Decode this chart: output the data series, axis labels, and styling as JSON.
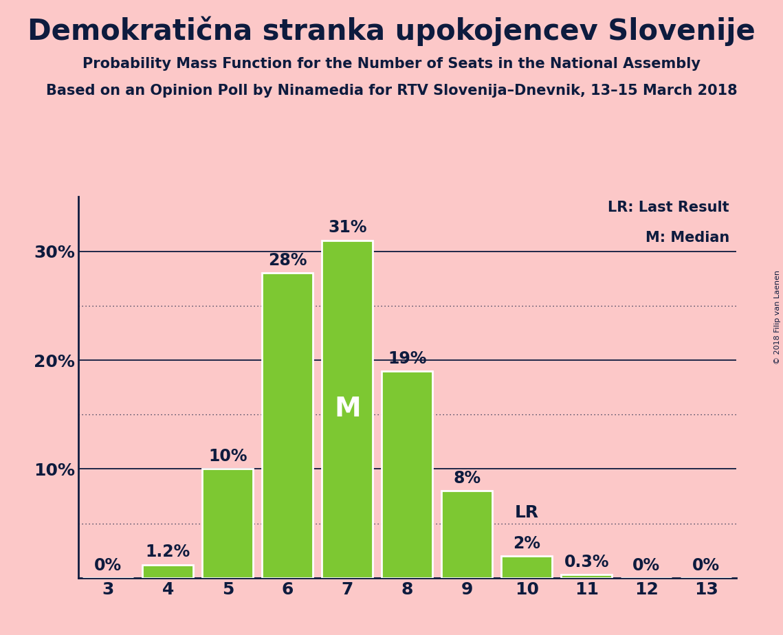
{
  "title": "Demokratična stranka upokojencev Slovenije",
  "subtitle1": "Probability Mass Function for the Number of Seats in the National Assembly",
  "subtitle2": "Based on an Opinion Poll by Ninamedia for RTV Slovenija–Dnevnik, 13–15 March 2018",
  "copyright": "© 2018 Filip van Laenen",
  "categories": [
    3,
    4,
    5,
    6,
    7,
    8,
    9,
    10,
    11,
    12,
    13
  ],
  "values": [
    0,
    1.2,
    10,
    28,
    31,
    19,
    8,
    2,
    0.3,
    0,
    0
  ],
  "bar_color": "#7dc832",
  "bar_edge_color": "#ffffff",
  "background_color": "#fcc8c8",
  "text_color": "#0d1b3e",
  "median_seat": 7,
  "last_result_seat": 10,
  "legend_lr": "LR: Last Result",
  "legend_m": "M: Median",
  "median_label": "M",
  "lr_label": "LR",
  "ylim": [
    0,
    35
  ],
  "hgrid_major": [
    10,
    20,
    30
  ],
  "hgrid_minor": [
    5,
    15,
    25
  ],
  "bar_labels": [
    "0%",
    "1.2%",
    "10%",
    "28%",
    "31%",
    "19%",
    "8%",
    "2%",
    "0.3%",
    "0%",
    "0%"
  ],
  "title_fontsize": 30,
  "subtitle_fontsize": 15,
  "bar_label_fontsize": 17,
  "tick_fontsize": 18,
  "legend_fontsize": 15,
  "median_fontsize": 28,
  "lr_fontsize": 18,
  "copyright_fontsize": 8
}
